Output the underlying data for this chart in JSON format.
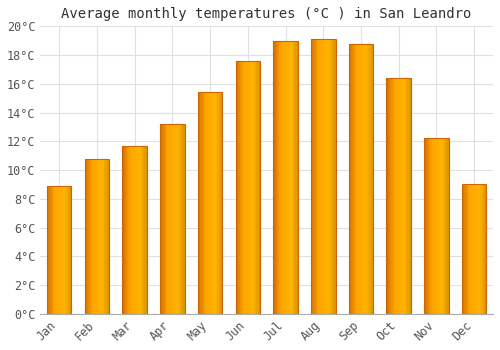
{
  "title": "Average monthly temperatures (°C ) in San Leandro",
  "months": [
    "Jan",
    "Feb",
    "Mar",
    "Apr",
    "May",
    "Jun",
    "Jul",
    "Aug",
    "Sep",
    "Oct",
    "Nov",
    "Dec"
  ],
  "values": [
    8.9,
    10.8,
    11.7,
    13.2,
    15.4,
    17.6,
    19.0,
    19.1,
    18.8,
    16.4,
    12.2,
    9.0
  ],
  "bar_color_main": "#FFA726",
  "bar_color_light": "#FFD54F",
  "bar_edge_color": "#E65100",
  "background_color": "#FFFFFF",
  "grid_color": "#E0E0E0",
  "ylim": [
    0,
    20
  ],
  "ytick_step": 2,
  "title_fontsize": 10,
  "tick_fontsize": 8.5,
  "font_family": "monospace",
  "bar_width": 0.65
}
